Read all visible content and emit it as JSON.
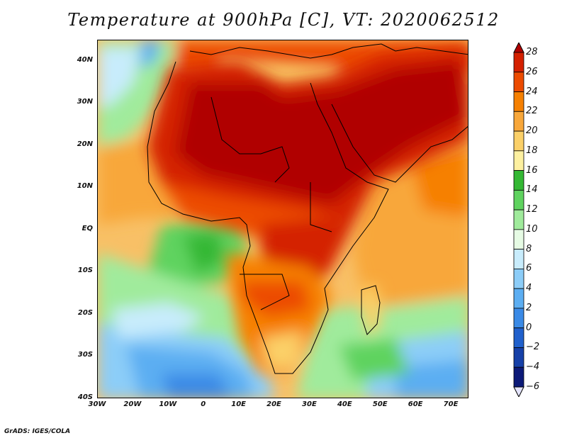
{
  "title": "Temperature at 900hPa [C], VT: 2020062512",
  "credit": "GrADS: IGES/COLA",
  "map": {
    "lon_range": [
      -30,
      75
    ],
    "lat_range": [
      -40,
      45
    ],
    "lat_ticks": [
      {
        "value": 40,
        "label": "40N"
      },
      {
        "value": 30,
        "label": "30N"
      },
      {
        "value": 20,
        "label": "20N"
      },
      {
        "value": 10,
        "label": "10N"
      },
      {
        "value": 0,
        "label": "EQ"
      },
      {
        "value": -10,
        "label": "10S"
      },
      {
        "value": -20,
        "label": "20S"
      },
      {
        "value": -30,
        "label": "30S"
      },
      {
        "value": -40,
        "label": "40S"
      }
    ],
    "lon_ticks": [
      {
        "value": -30,
        "label": "30W"
      },
      {
        "value": -20,
        "label": "20W"
      },
      {
        "value": -10,
        "label": "10W"
      },
      {
        "value": 0,
        "label": "0"
      },
      {
        "value": 10,
        "label": "10E"
      },
      {
        "value": 20,
        "label": "20E"
      },
      {
        "value": 30,
        "label": "30E"
      },
      {
        "value": 40,
        "label": "40E"
      },
      {
        "value": 50,
        "label": "50E"
      },
      {
        "value": 60,
        "label": "60E"
      },
      {
        "value": 70,
        "label": "70E"
      }
    ]
  },
  "colorbar": {
    "levels": [
      "28",
      "26",
      "24",
      "22",
      "20",
      "18",
      "16",
      "14",
      "12",
      "10",
      "8",
      "6",
      "4",
      "2",
      "0",
      "−2",
      "−4",
      "−6"
    ],
    "colors": [
      "#b00000",
      "#d42000",
      "#ec4b00",
      "#f68000",
      "#f8a73a",
      "#fbd068",
      "#fdf0a0",
      "#34b834",
      "#5fd35f",
      "#a0eb9c",
      "#e6fbe4",
      "#c8ecfc",
      "#8ccdf8",
      "#5caef2",
      "#3a8ae6",
      "#2060cc",
      "#1640a8",
      "#0c1a78",
      "#e4e4fc"
    ]
  }
}
